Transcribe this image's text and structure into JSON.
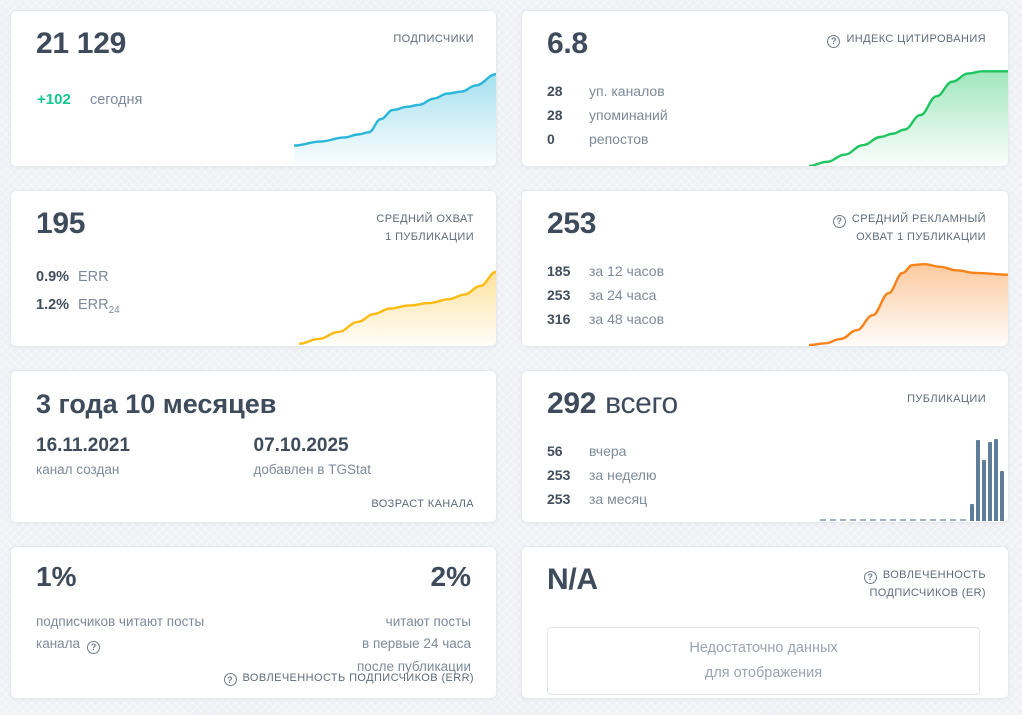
{
  "icons": {
    "help_glyph": "?"
  },
  "colors": {
    "accent_green_delta": "#10c78e",
    "spark_blue": "#29b6d8",
    "spark_green": "#1fc561",
    "spark_yellow": "#fcba12",
    "spark_orange": "#f8821a",
    "bar_slate": "#5d7d99"
  },
  "cards": {
    "subscribers": {
      "title": "ПОДПИСЧИКИ",
      "value": "21 129",
      "delta": "+102",
      "delta_label": "сегодня"
    },
    "citation_index": {
      "title": "ИНДЕКС ЦИТИРОВАНИЯ",
      "value": "6.8",
      "stats": [
        {
          "value": "28",
          "label": "уп. каналов"
        },
        {
          "value": "28",
          "label": "упоминаний"
        },
        {
          "value": "0",
          "label": "репостов"
        }
      ]
    },
    "avg_reach": {
      "title_line1": "СРЕДНИЙ ОХВАТ",
      "title_line2": "1 ПУБЛИКАЦИИ",
      "value": "195",
      "stats": [
        {
          "value": "0.9%",
          "label": "ERR"
        },
        {
          "value": "1.2%",
          "label": "ERR",
          "label_sub": "24"
        }
      ]
    },
    "avg_ad_reach": {
      "title_line1": "СРЕДНИЙ РЕКЛАМНЫЙ",
      "title_line2": "ОХВАТ 1 ПУБЛИКАЦИИ",
      "value": "253",
      "stats": [
        {
          "value": "185",
          "label": "за 12 часов"
        },
        {
          "value": "253",
          "label": "за 24 часа"
        },
        {
          "value": "316",
          "label": "за 48 часов"
        }
      ]
    },
    "channel_age": {
      "value": "3 года 10 месяцев",
      "created": {
        "date": "16.11.2021",
        "label": "канал создан"
      },
      "added": {
        "date": "07.10.2025",
        "label": "добавлен в TGStat"
      },
      "footer": "ВОЗРАСТ КАНАЛА"
    },
    "publications": {
      "title": "ПУБЛИКАЦИИ",
      "value": "292",
      "value_suffix": "всего",
      "stats": [
        {
          "value": "56",
          "label": "вчера"
        },
        {
          "value": "253",
          "label": "за неделю"
        },
        {
          "value": "253",
          "label": "за месяц"
        }
      ]
    },
    "err": {
      "left_value": "1%",
      "left_label_line1": "подписчиков читают посты",
      "left_label_line2": "канала",
      "right_value": "2%",
      "right_label_lines": [
        "читают посты",
        "в первые 24 часа",
        "после публикации"
      ],
      "footer": "ВОВЛЕЧЕННОСТЬ ПОДПИСЧИКОВ (ERR)"
    },
    "er": {
      "title_line1": "ВОВЛЕЧЕННОСТЬ",
      "title_line2": "ПОДПИСЧИКОВ (ER)",
      "value": "N/A",
      "empty_line1": "Недостаточно данных",
      "empty_line2": "для отображения"
    }
  },
  "chart_data": [
    {
      "name": "subscribers-trend",
      "type": "area",
      "title": "ПОДПИСЧИКИ",
      "color": "#29b6d8",
      "axes": false,
      "y_scale": "relative-0-100 (sparkline, no axis labels shown)",
      "current_value": 21129,
      "delta_today": 102,
      "points": [
        [
          0,
          20
        ],
        [
          13,
          24
        ],
        [
          25,
          28
        ],
        [
          32,
          31
        ],
        [
          37,
          33
        ],
        [
          43,
          46
        ],
        [
          49,
          55
        ],
        [
          56,
          58
        ],
        [
          62,
          60
        ],
        [
          69,
          66
        ],
        [
          76,
          71
        ],
        [
          83,
          73
        ],
        [
          90,
          79
        ],
        [
          100,
          90
        ]
      ]
    },
    {
      "name": "citation-index-trend",
      "type": "area",
      "title": "ИНДЕКС ЦИТИРОВАНИЯ",
      "color": "#1fc561",
      "axes": false,
      "y_scale": "relative-0-100 (sparkline, no axis labels shown)",
      "current_value": 6.8,
      "points": [
        [
          0,
          0
        ],
        [
          9,
          4
        ],
        [
          18,
          11
        ],
        [
          27,
          20
        ],
        [
          36,
          28
        ],
        [
          42,
          31
        ],
        [
          48,
          35
        ],
        [
          56,
          49
        ],
        [
          64,
          67
        ],
        [
          72,
          81
        ],
        [
          80,
          89
        ],
        [
          87,
          91
        ],
        [
          100,
          91
        ]
      ]
    },
    {
      "name": "avg-reach-trend",
      "type": "area",
      "title": "СРЕДНИЙ ОХВАТ 1 ПУБЛИКАЦИИ",
      "color": "#fcba12",
      "axes": false,
      "y_scale": "relative-0-100 (sparkline, no axis labels shown)",
      "current_value": 195,
      "points": [
        [
          0,
          3
        ],
        [
          10,
          9
        ],
        [
          20,
          18
        ],
        [
          30,
          31
        ],
        [
          38,
          41
        ],
        [
          46,
          48
        ],
        [
          56,
          52
        ],
        [
          66,
          55
        ],
        [
          76,
          60
        ],
        [
          84,
          66
        ],
        [
          92,
          77
        ],
        [
          100,
          95
        ]
      ]
    },
    {
      "name": "avg-ad-reach-trend",
      "type": "area",
      "title": "СРЕДНИЙ РЕКЛАМНЫЙ ОХВАТ 1 ПУБЛИКАЦИИ",
      "color": "#f8821a",
      "axes": false,
      "y_scale": "relative-0-100 (sparkline, no axis labels shown)",
      "current_value": 253,
      "values_by_window": {
        "12h": 185,
        "24h": 253,
        "48h": 316
      },
      "points": [
        [
          0,
          1
        ],
        [
          8,
          3
        ],
        [
          16,
          8
        ],
        [
          24,
          18
        ],
        [
          32,
          35
        ],
        [
          40,
          60
        ],
        [
          47,
          83
        ],
        [
          52,
          92
        ],
        [
          58,
          93
        ],
        [
          66,
          90
        ],
        [
          74,
          86
        ],
        [
          84,
          83
        ],
        [
          100,
          81
        ]
      ]
    },
    {
      "name": "publications-daily",
      "type": "bar",
      "title": "ПУБЛИКАЦИИ",
      "color": "#5d7d99",
      "axes": false,
      "y_scale": "relative-0-100 (sparkline bars, no axis labels shown)",
      "totals": {
        "total": 292,
        "yesterday": 56,
        "week": 253,
        "month": 253
      },
      "values_relative": [
        21,
        99,
        74,
        96,
        100,
        61
      ]
    }
  ]
}
